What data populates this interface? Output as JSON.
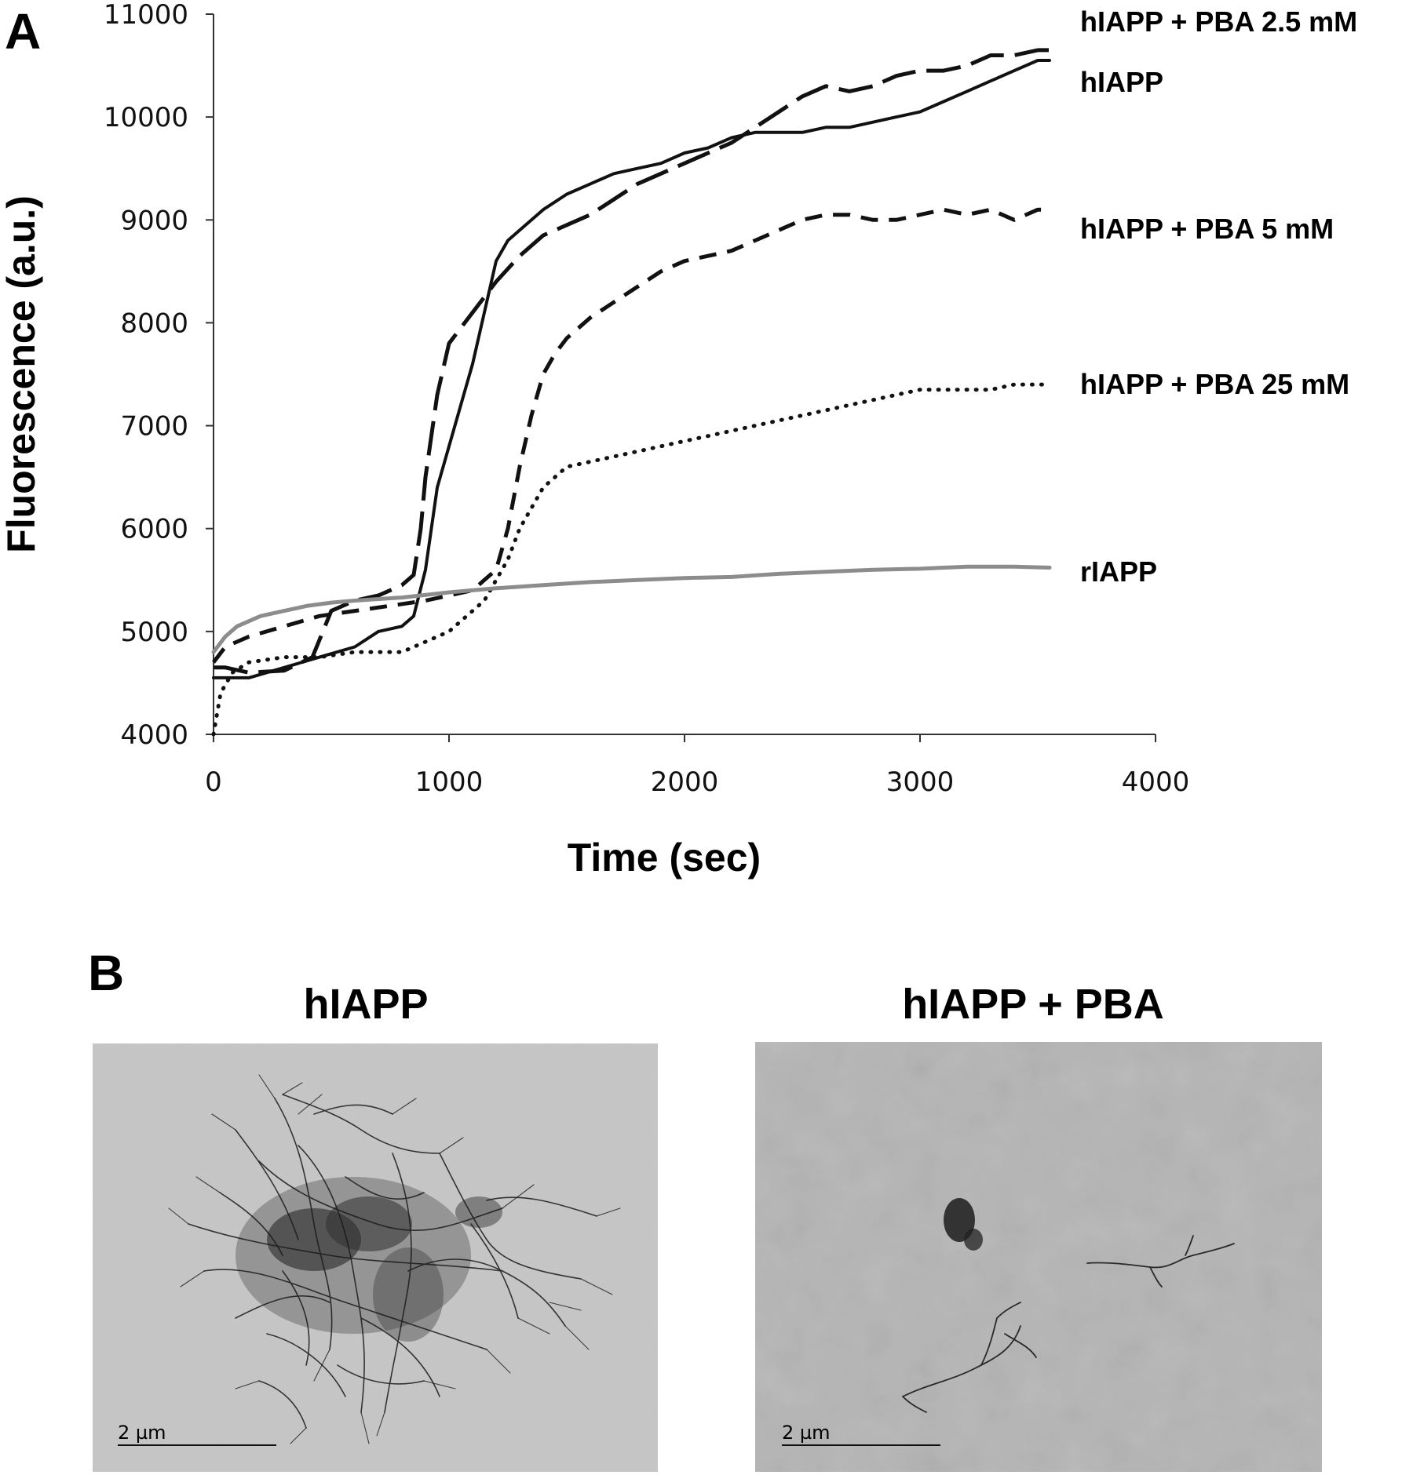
{
  "panel_a": {
    "letter": "A",
    "chart_data": {
      "type": "line",
      "xlabel": "Time (sec)",
      "ylabel": "Fluorescence (a.u.)",
      "xlim": [
        0,
        4000
      ],
      "ylim": [
        4000,
        11000
      ],
      "xticks": [
        "0",
        "1000",
        "2000",
        "3000",
        "4000"
      ],
      "yticks": [
        "4000",
        "5000",
        "6000",
        "7000",
        "8000",
        "9000",
        "10000",
        "11000"
      ],
      "grid": false,
      "series": [
        {
          "name": "hIAPP + PBA 2.5 mM",
          "style": "long-dash",
          "color": "#111111",
          "x": [
            0,
            50,
            150,
            300,
            420,
            500,
            600,
            700,
            800,
            850,
            880,
            900,
            950,
            1000,
            1100,
            1200,
            1300,
            1400,
            1500,
            1600,
            1700,
            1800,
            1900,
            2000,
            2100,
            2200,
            2300,
            2400,
            2500,
            2600,
            2700,
            2800,
            2900,
            3000,
            3100,
            3200,
            3300,
            3400,
            3500,
            3550
          ],
          "y": [
            4650,
            4650,
            4600,
            4620,
            4750,
            5200,
            5300,
            5350,
            5450,
            5550,
            6000,
            6500,
            7300,
            7800,
            8100,
            8400,
            8650,
            8850,
            8950,
            9050,
            9200,
            9350,
            9450,
            9550,
            9650,
            9750,
            9900,
            10050,
            10200,
            10300,
            10250,
            10300,
            10400,
            10450,
            10450,
            10500,
            10600,
            10600,
            10650,
            10650
          ]
        },
        {
          "name": "hIAPP",
          "style": "solid",
          "color": "#111111",
          "x": [
            0,
            50,
            150,
            300,
            450,
            600,
            700,
            800,
            850,
            900,
            950,
            1000,
            1050,
            1100,
            1150,
            1200,
            1250,
            1300,
            1400,
            1500,
            1600,
            1700,
            1800,
            1900,
            2000,
            2100,
            2200,
            2300,
            2400,
            2500,
            2600,
            2700,
            2800,
            2900,
            3000,
            3100,
            3200,
            3300,
            3400,
            3500,
            3550
          ],
          "y": [
            4550,
            4550,
            4550,
            4650,
            4750,
            4850,
            5000,
            5050,
            5150,
            5600,
            6400,
            6800,
            7200,
            7600,
            8100,
            8600,
            8800,
            8900,
            9100,
            9250,
            9350,
            9450,
            9500,
            9550,
            9650,
            9700,
            9800,
            9850,
            9850,
            9850,
            9900,
            9900,
            9950,
            10000,
            10050,
            10150,
            10250,
            10350,
            10450,
            10550,
            10550
          ]
        },
        {
          "name": "hIAPP + PBA 5 mM",
          "style": "short-dash",
          "color": "#111111",
          "x": [
            0,
            50,
            150,
            300,
            450,
            600,
            750,
            900,
            1000,
            1100,
            1150,
            1200,
            1250,
            1300,
            1350,
            1400,
            1450,
            1500,
            1600,
            1700,
            1800,
            1900,
            2000,
            2100,
            2200,
            2300,
            2400,
            2500,
            2600,
            2700,
            2800,
            2900,
            3000,
            3100,
            3200,
            3300,
            3400,
            3500,
            3550
          ],
          "y": [
            4700,
            4850,
            4950,
            5050,
            5150,
            5200,
            5250,
            5300,
            5350,
            5400,
            5500,
            5600,
            6000,
            6600,
            7100,
            7500,
            7700,
            7850,
            8050,
            8200,
            8350,
            8500,
            8600,
            8650,
            8700,
            8800,
            8900,
            9000,
            9050,
            9050,
            9000,
            9000,
            9050,
            9100,
            9050,
            9100,
            9000,
            9100,
            9100
          ]
        },
        {
          "name": "hIAPP + PBA 25 mM",
          "style": "dotted",
          "color": "#111111",
          "x": [
            0,
            30,
            80,
            150,
            300,
            450,
            600,
            700,
            800,
            900,
            1000,
            1100,
            1150,
            1200,
            1250,
            1300,
            1350,
            1400,
            1450,
            1500,
            1600,
            1700,
            1800,
            1900,
            2000,
            2100,
            2200,
            2300,
            2400,
            2500,
            2600,
            2700,
            2800,
            2900,
            3000,
            3100,
            3200,
            3300,
            3400,
            3500,
            3550
          ],
          "y": [
            4000,
            4400,
            4600,
            4700,
            4750,
            4750,
            4800,
            4800,
            4800,
            4900,
            5000,
            5200,
            5300,
            5500,
            5700,
            6000,
            6200,
            6400,
            6500,
            6600,
            6650,
            6700,
            6750,
            6800,
            6850,
            6900,
            6950,
            7000,
            7050,
            7100,
            7150,
            7200,
            7250,
            7300,
            7350,
            7350,
            7350,
            7350,
            7400,
            7400,
            7400
          ]
        },
        {
          "name": "rIAPP",
          "style": "solid",
          "color": "#8c8c8c",
          "x": [
            0,
            50,
            100,
            200,
            300,
            400,
            500,
            600,
            800,
            1000,
            1200,
            1400,
            1600,
            1800,
            2000,
            2200,
            2400,
            2600,
            2800,
            3000,
            3200,
            3400,
            3550
          ],
          "y": [
            4800,
            4950,
            5050,
            5150,
            5200,
            5250,
            5280,
            5300,
            5330,
            5380,
            5420,
            5450,
            5480,
            5500,
            5520,
            5530,
            5560,
            5580,
            5600,
            5610,
            5630,
            5630,
            5620
          ]
        }
      ]
    }
  },
  "panel_b": {
    "letter": "B",
    "images": [
      {
        "title": "hIAPP",
        "scale_bar": "2 µm"
      },
      {
        "title": "hIAPP + PBA",
        "scale_bar": "2 µm"
      }
    ]
  }
}
